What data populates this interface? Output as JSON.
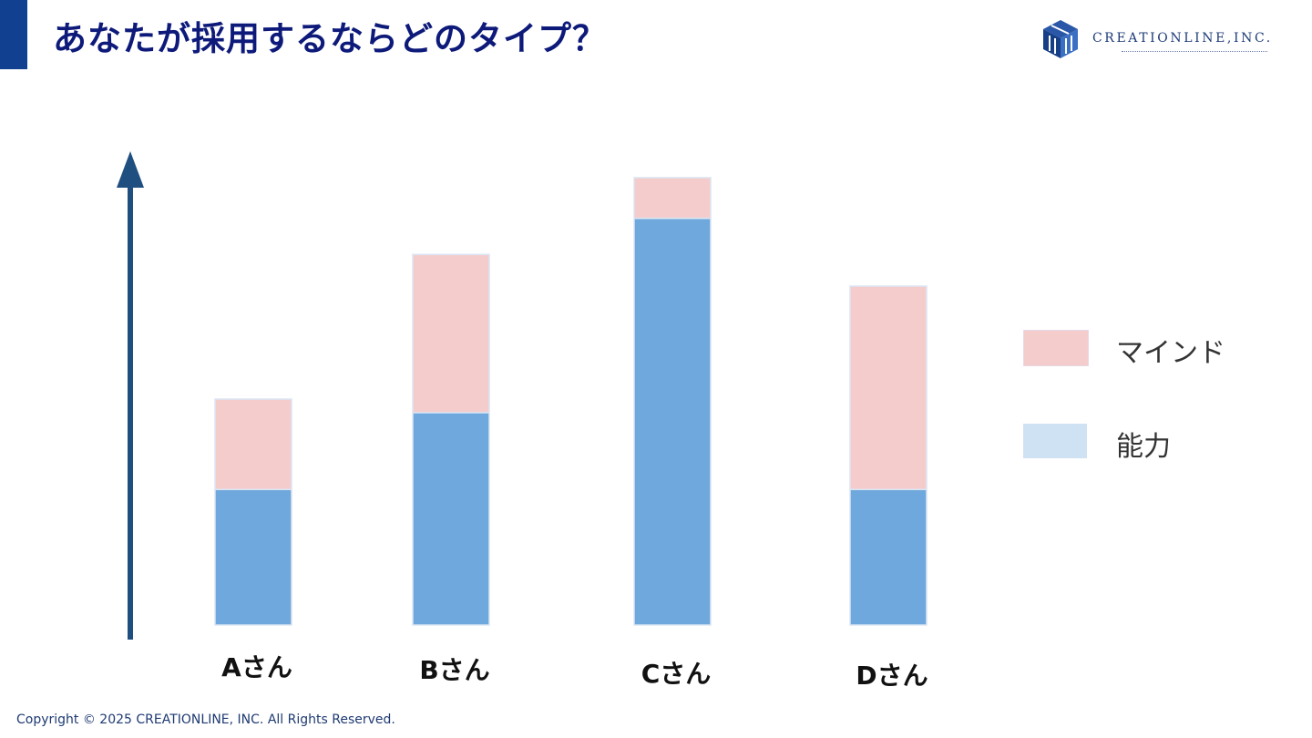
{
  "slide": {
    "title": "あなたが採用するならどのタイプ？",
    "logo_text": "CREATIONLINE,INC.",
    "copyright": "Copyright © 2025 CREATIONLINE, INC. All Rights Reserved.",
    "accent_color": "#10408f",
    "title_color": "#0d1a7a"
  },
  "legend": {
    "mind_label": "マインド",
    "ability_label": "能力",
    "mind_color": "#f4cccc",
    "ability_color": "#cfe2f3"
  },
  "chart_data": {
    "type": "bar",
    "stacked": true,
    "title": "",
    "xlabel": "",
    "ylabel": "",
    "ylim": [
      0,
      100
    ],
    "categories": [
      "Aさん",
      "Bさん",
      "Cさん",
      "Dさん"
    ],
    "series": [
      {
        "name": "能力",
        "color": "#6fa8dc",
        "values": [
          30,
          47,
          90,
          30
        ]
      },
      {
        "name": "マインド",
        "color": "#f4cccc",
        "values": [
          20,
          35,
          9,
          45
        ]
      }
    ],
    "axis_arrow_color": "#1f4e80",
    "grid": false,
    "legend_position": "right"
  }
}
